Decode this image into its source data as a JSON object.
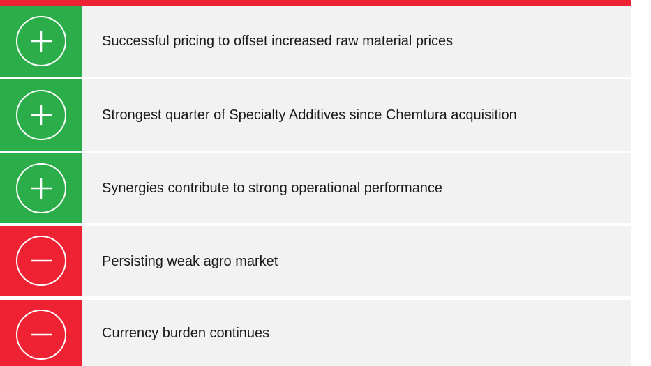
{
  "items": [
    {
      "text": "Successful pricing to offset increased raw material prices"
    },
    {
      "text": "Strongest quarter of Specialty Additives since Chemtura acquisition"
    },
    {
      "text": "Synergies contribute to strong operational performance"
    },
    {
      "text": "Persisting weak agro market"
    },
    {
      "text": "Currency burden continues"
    }
  ]
}
